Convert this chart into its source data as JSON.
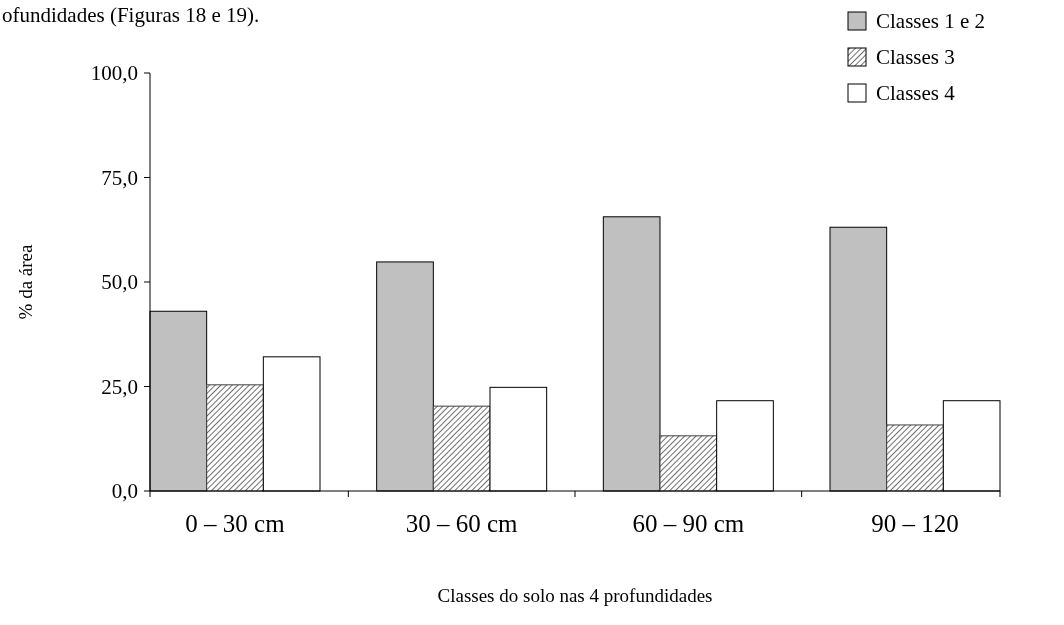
{
  "chart_data": {
    "type": "bar",
    "xlabel": "Classes do solo nas 4 profundidades",
    "ylabel": "% da área",
    "annotations": [
      "ofundidades (Figuras 18 e 19)."
    ],
    "categories": [
      "0 – 30 cm",
      "30 – 60 cm",
      "60 – 90 cm",
      "90 – 120"
    ],
    "series": [
      {
        "name": "Classes 1 e 2",
        "color": "#c0c0c0",
        "values": [
          43.0,
          54.8,
          65.6,
          63.1
        ]
      },
      {
        "name": "Classes 3",
        "color": "#404040",
        "values": [
          25.4,
          20.3,
          13.2,
          15.8
        ]
      },
      {
        "name": "Classes 4",
        "color": "#ffffff",
        "values": [
          32.1,
          24.8,
          21.6,
          21.6
        ]
      }
    ],
    "ylim": [
      0,
      100
    ],
    "yticks": [
      {
        "value": 0,
        "label": "0,0"
      },
      {
        "value": 25,
        "label": "25,0"
      },
      {
        "value": 50,
        "label": "50,0"
      },
      {
        "value": 75,
        "label": "75,0"
      },
      {
        "value": 100,
        "label": "100,0"
      }
    ],
    "grid": false,
    "legend": "top right"
  }
}
